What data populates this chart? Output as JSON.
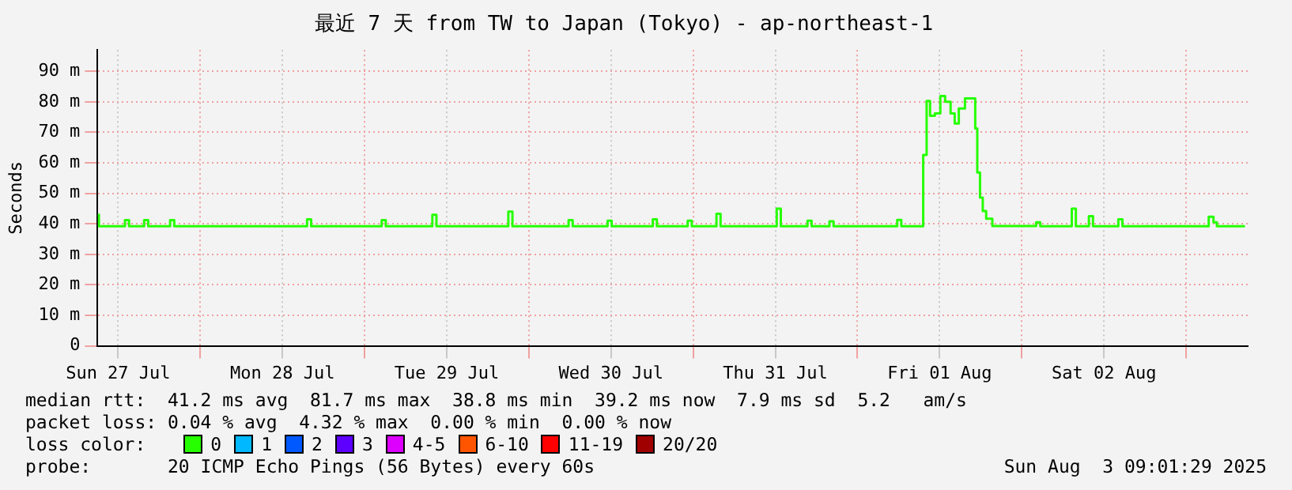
{
  "chart_data": {
    "type": "step",
    "title": "最近 7 天 from TW to Japan (Tokyo) - ap-northeast-1",
    "ylabel": "Seconds",
    "xlim": [
      "2025-07-27T09:00",
      "2025-08-03T09:00"
    ],
    "xticks": [
      {
        "value": "2025-07-27T12:00",
        "label": "Sun 27 Jul"
      },
      {
        "value": "2025-07-28T00:00",
        "label": null
      },
      {
        "value": "2025-07-28T12:00",
        "label": "Mon 28 Jul"
      },
      {
        "value": "2025-07-29T00:00",
        "label": null
      },
      {
        "value": "2025-07-29T12:00",
        "label": "Tue 29 Jul"
      },
      {
        "value": "2025-07-30T00:00",
        "label": null
      },
      {
        "value": "2025-07-30T12:00",
        "label": "Wed 30 Jul"
      },
      {
        "value": "2025-07-31T00:00",
        "label": null
      },
      {
        "value": "2025-07-31T12:00",
        "label": "Thu 31 Jul"
      },
      {
        "value": "2025-08-01T00:00",
        "label": null
      },
      {
        "value": "2025-08-01T12:00",
        "label": "Fri 01 Aug"
      },
      {
        "value": "2025-08-02T00:00",
        "label": null
      },
      {
        "value": "2025-08-02T12:00",
        "label": "Sat 02 Aug"
      },
      {
        "value": "2025-08-03T00:00",
        "label": null
      }
    ],
    "ylim": [
      0,
      97
    ],
    "yticks": [
      0,
      {
        "value": 10,
        "label": "10 m"
      },
      {
        "value": 20,
        "label": "20 m"
      },
      {
        "value": 30,
        "label": "30 m"
      },
      {
        "value": 40,
        "label": "40 m"
      },
      {
        "value": 50,
        "label": "50 m"
      },
      {
        "value": 60,
        "label": "60 m"
      },
      {
        "value": 70,
        "label": "70 m"
      },
      {
        "value": 80,
        "label": "80 m"
      },
      {
        "value": 90,
        "label": "90 m"
      }
    ],
    "grid": true,
    "legend": "bottom",
    "legend_title": "loss color:",
    "series": [
      {
        "name": "0",
        "color": "#26ff00",
        "x": [
          "2025-07-27T09:00",
          "2025-07-27T09:12",
          "2025-07-27T13:00",
          "2025-07-27T13:36",
          "2025-07-27T15:48",
          "2025-07-27T16:24",
          "2025-07-27T19:36",
          "2025-07-27T20:12",
          "2025-07-28T15:36",
          "2025-07-28T16:12",
          "2025-07-29T02:30",
          "2025-07-29T03:06",
          "2025-07-29T09:54",
          "2025-07-29T10:30",
          "2025-07-29T21:00",
          "2025-07-29T21:36",
          "2025-07-30T05:48",
          "2025-07-30T06:24",
          "2025-07-30T11:30",
          "2025-07-30T12:06",
          "2025-07-30T18:06",
          "2025-07-30T18:42",
          "2025-07-30T23:12",
          "2025-07-30T23:48",
          "2025-07-31T03:24",
          "2025-07-31T04:00",
          "2025-07-31T12:12",
          "2025-07-31T12:48",
          "2025-07-31T16:42",
          "2025-07-31T17:18",
          "2025-07-31T19:54",
          "2025-07-31T20:30",
          "2025-08-01T05:48",
          "2025-08-01T06:24",
          "2025-08-01T09:36",
          "2025-08-01T10:06",
          "2025-08-01T10:36",
          "2025-08-01T11:18",
          "2025-08-01T12:06",
          "2025-08-01T12:48",
          "2025-08-01T13:36",
          "2025-08-01T14:12",
          "2025-08-01T14:48",
          "2025-08-01T15:42",
          "2025-08-01T16:30",
          "2025-08-01T17:12",
          "2025-08-01T17:30",
          "2025-08-01T17:54",
          "2025-08-01T18:18",
          "2025-08-01T18:48",
          "2025-08-01T19:42",
          "2025-08-02T02:06",
          "2025-08-02T02:42",
          "2025-08-02T07:18",
          "2025-08-02T07:54",
          "2025-08-02T09:48",
          "2025-08-02T10:24",
          "2025-08-02T14:06",
          "2025-08-02T14:42",
          "2025-08-03T03:18",
          "2025-08-03T04:00",
          "2025-08-03T04:30",
          "2025-08-03T08:36"
        ],
        "values": [
          43,
          39.2,
          41.2,
          39.2,
          41.2,
          39.2,
          41.2,
          39.2,
          41.5,
          39.2,
          41.2,
          39.2,
          43,
          39.2,
          44,
          39.2,
          41.2,
          39.2,
          41,
          39.2,
          41.5,
          39.2,
          41,
          39.2,
          43.3,
          39.2,
          45,
          39.2,
          41,
          39.2,
          40.8,
          39.2,
          41.3,
          39.2,
          62.6,
          80.3,
          75.4,
          76.2,
          81.9,
          80,
          76.2,
          72.9,
          77.8,
          81.1,
          81.1,
          71.3,
          56.8,
          48.6,
          44.2,
          41.7,
          39.3,
          40.5,
          39.2,
          45,
          39.2,
          42.5,
          39.2,
          41.5,
          39.2,
          42.3,
          40.5,
          39.2,
          39.2
        ]
      },
      {
        "name": "1",
        "color": "#00b8ff"
      },
      {
        "name": "2",
        "color": "#0059ff"
      },
      {
        "name": "3",
        "color": "#5e00ff"
      },
      {
        "name": "4-5",
        "color": "#dd00ff"
      },
      {
        "name": "6-10",
        "color": "#ff5500"
      },
      {
        "name": "11-19",
        "color": "#ff0000"
      },
      {
        "name": "20/20",
        "color": "#a00000"
      }
    ],
    "annotations": [
      "median rtt:  41.2 ms avg  81.7 ms max  38.8 ms min  39.2 ms now  7.9 ms sd  5.2   am/s",
      "packet loss: 0.04 % avg  4.32 % max  0.00 % min  0.00 % now",
      "probe:       20 ICMP Echo Pings (56 Bytes) every 60s",
      "Sun Aug  3 09:01:29 2025"
    ]
  }
}
